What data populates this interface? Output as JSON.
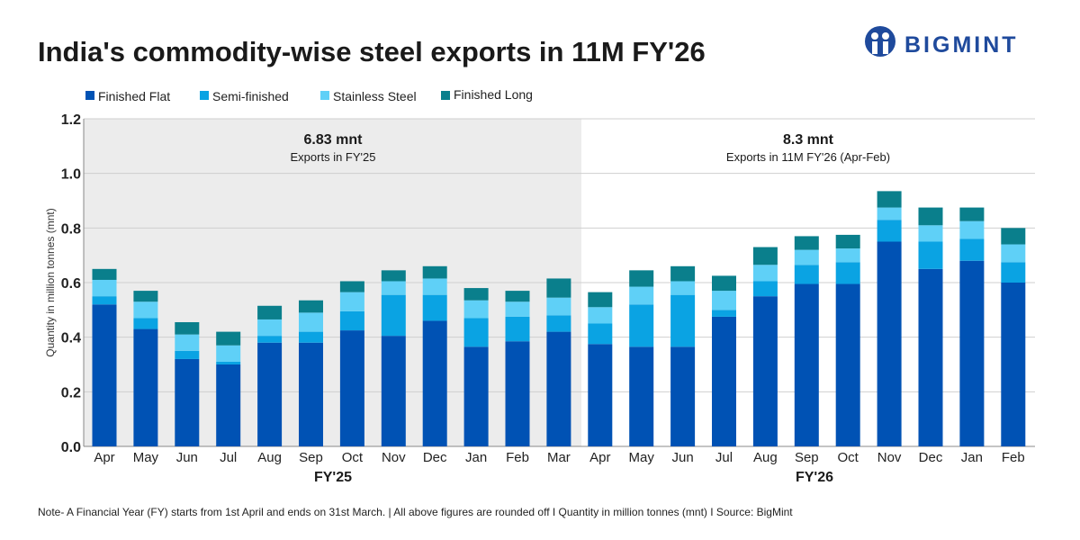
{
  "logo": {
    "text": "BIGMINT"
  },
  "chart_data": {
    "type": "bar",
    "stacked": true,
    "title": "India's commodity-wise steel exports in 11M FY'26",
    "ylabel": "Quantity in million tonnes (mnt)",
    "ylim": [
      0,
      1.2
    ],
    "yticks": [
      "0.0",
      "0.2",
      "0.4",
      "0.6",
      "0.8",
      "1.0",
      "1.2"
    ],
    "grid": true,
    "legend_position": "top-left",
    "categories": [
      "Apr",
      "May",
      "Jun",
      "Jul",
      "Aug",
      "Sep",
      "Oct",
      "Nov",
      "Dec",
      "Jan",
      "Feb",
      "Mar",
      "Apr",
      "May",
      "Jun",
      "Jul",
      "Aug",
      "Sep",
      "Oct",
      "Nov",
      "Dec",
      "Jan",
      "Feb"
    ],
    "groups": [
      {
        "label": "FY'25",
        "annotation_value": "6.83 mnt",
        "annotation_text": "Exports in FY'25",
        "shaded": true
      },
      {
        "label": "FY'26",
        "annotation_value": "8.3 mnt",
        "annotation_text": "Exports in 11M FY'26 (Apr-Feb)",
        "shaded": false
      }
    ],
    "series": [
      {
        "name": "Finished Flat",
        "color": "#0052b4",
        "values": [
          0.52,
          0.43,
          0.32,
          0.3,
          0.38,
          0.38,
          0.425,
          0.405,
          0.46,
          0.365,
          0.385,
          0.42,
          0.375,
          0.365,
          0.365,
          0.475,
          0.55,
          0.595,
          0.595,
          0.75,
          0.65,
          0.68,
          0.6
        ]
      },
      {
        "name": "Semi-finished",
        "color": "#0aa3e3",
        "values": [
          0.03,
          0.04,
          0.03,
          0.01,
          0.025,
          0.04,
          0.07,
          0.15,
          0.095,
          0.105,
          0.09,
          0.06,
          0.075,
          0.155,
          0.19,
          0.025,
          0.055,
          0.07,
          0.08,
          0.08,
          0.1,
          0.08,
          0.075
        ]
      },
      {
        "name": "Stainless Steel",
        "color": "#5fd0f7",
        "values": [
          0.06,
          0.06,
          0.06,
          0.06,
          0.06,
          0.07,
          0.07,
          0.05,
          0.06,
          0.065,
          0.055,
          0.065,
          0.06,
          0.065,
          0.05,
          0.07,
          0.06,
          0.055,
          0.05,
          0.045,
          0.06,
          0.065,
          0.065
        ]
      },
      {
        "name": "Finished Long",
        "color": "#0a7f8c",
        "values": [
          0.04,
          0.04,
          0.045,
          0.05,
          0.05,
          0.045,
          0.04,
          0.04,
          0.045,
          0.045,
          0.04,
          0.07,
          0.055,
          0.06,
          0.055,
          0.055,
          0.065,
          0.05,
          0.05,
          0.06,
          0.065,
          0.05,
          0.06
        ]
      }
    ]
  },
  "footnote": "Note- A Financial Year (FY) starts from 1st April and ends on 31st March.  |  All above figures are rounded off  I  Quantity in million tonnes (mnt)  I  Source: BigMint"
}
